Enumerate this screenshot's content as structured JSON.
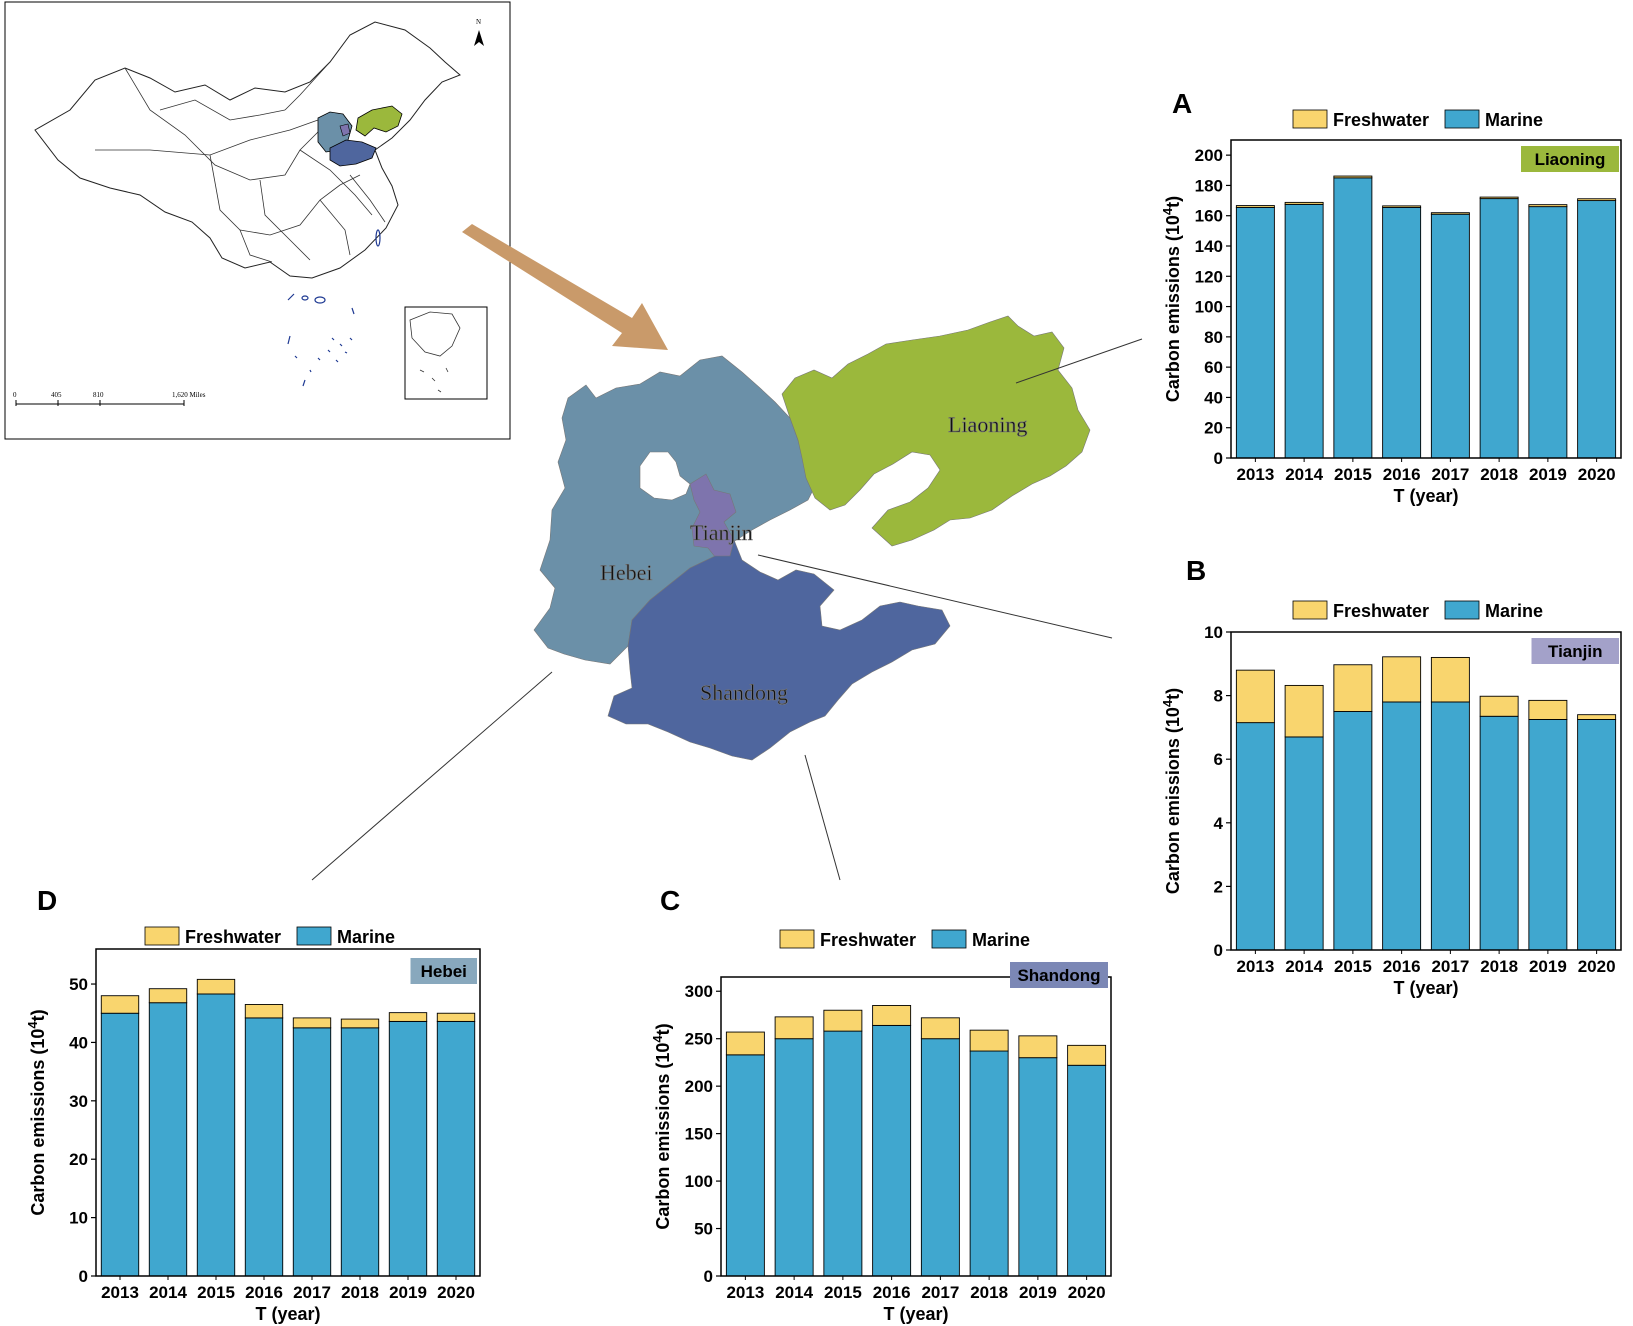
{
  "colors": {
    "freshwater": "#f9d56e",
    "marine": "#40a7cf",
    "liaoning": "#9bb83c",
    "hebei": "#6b90a8",
    "tianjin": "#7e74ad",
    "shandong": "#4f669e",
    "arrow": "#c99a6a"
  },
  "overview_map": {
    "north_label": "N",
    "scale_labels": [
      "0",
      "405",
      "810",
      "1,620 Miles"
    ]
  },
  "region_map": {
    "labels": {
      "liaoning": "Liaoning",
      "tianjin": "Tianjin",
      "hebei": "Hebei",
      "shandong": "Shandong"
    }
  },
  "chart_data": [
    {
      "panel": "A",
      "type": "bar",
      "stacked": true,
      "region": "Liaoning",
      "region_color": "#9bb83c",
      "legend": [
        "Freshwater",
        "Marine"
      ],
      "categories": [
        "2013",
        "2014",
        "2015",
        "2016",
        "2017",
        "2018",
        "2019",
        "2020"
      ],
      "series": [
        {
          "name": "Marine",
          "values": [
            165.5,
            167.5,
            185,
            165.5,
            161,
            171.3,
            166,
            170
          ]
        },
        {
          "name": "Freshwater",
          "values": [
            1.2,
            1.3,
            1.2,
            1.0,
            1.0,
            1.0,
            1.3,
            1.2
          ]
        }
      ],
      "xlabel": "T (year)",
      "ylabel_prefix": "Carbon emissions (10",
      "ylabel_sup": "4",
      "ylabel_suffix": "t)",
      "ylim": [
        0,
        210
      ],
      "yticks": [
        0,
        20,
        40,
        60,
        80,
        100,
        120,
        140,
        160,
        180,
        200
      ]
    },
    {
      "panel": "B",
      "type": "bar",
      "stacked": true,
      "region": "Tianjin",
      "region_color": "#a3a1c9",
      "legend": [
        "Freshwater",
        "Marine"
      ],
      "categories": [
        "2013",
        "2014",
        "2015",
        "2016",
        "2017",
        "2018",
        "2019",
        "2020"
      ],
      "series": [
        {
          "name": "Marine",
          "values": [
            7.15,
            6.7,
            7.5,
            7.8,
            7.8,
            7.35,
            7.25,
            7.25
          ]
        },
        {
          "name": "Freshwater",
          "values": [
            1.65,
            1.62,
            1.47,
            1.42,
            1.4,
            0.63,
            0.6,
            0.15
          ]
        }
      ],
      "xlabel": "T (year)",
      "ylabel_prefix": "Carbon emissions (10",
      "ylabel_sup": "4",
      "ylabel_suffix": "t)",
      "ylim": [
        0,
        10
      ],
      "yticks": [
        0,
        2,
        4,
        6,
        8,
        10
      ]
    },
    {
      "panel": "C",
      "type": "bar",
      "stacked": true,
      "region": "Shandong",
      "region_color": "#7b87b5",
      "legend": [
        "Freshwater",
        "Marine"
      ],
      "categories": [
        "2013",
        "2014",
        "2015",
        "2016",
        "2017",
        "2018",
        "2019",
        "2020"
      ],
      "series": [
        {
          "name": "Marine",
          "values": [
            233,
            250,
            258,
            264,
            250,
            237,
            230,
            222
          ]
        },
        {
          "name": "Freshwater",
          "values": [
            24,
            23,
            22,
            21,
            22,
            22,
            23,
            21
          ]
        }
      ],
      "xlabel": "T (year)",
      "ylabel_prefix": "Carbon emissions (10",
      "ylabel_sup": "4",
      "ylabel_suffix": "t)",
      "ylim": [
        0,
        315
      ],
      "yticks": [
        0,
        50,
        100,
        150,
        200,
        250,
        300
      ]
    },
    {
      "panel": "D",
      "type": "bar",
      "stacked": true,
      "region": "Hebei",
      "region_color": "#88a8bd",
      "legend": [
        "Freshwater",
        "Marine"
      ],
      "categories": [
        "2013",
        "2014",
        "2015",
        "2016",
        "2017",
        "2018",
        "2019",
        "2020"
      ],
      "series": [
        {
          "name": "Marine",
          "values": [
            45,
            46.8,
            48.3,
            44.2,
            42.5,
            42.5,
            43.6,
            43.6
          ]
        },
        {
          "name": "Freshwater",
          "values": [
            3.0,
            2.4,
            2.5,
            2.3,
            1.7,
            1.5,
            1.5,
            1.4
          ]
        }
      ],
      "xlabel": "T (year)",
      "ylabel_prefix": "Carbon emissions (10",
      "ylabel_sup": "4",
      "ylabel_suffix": "t)",
      "ylim": [
        0,
        56
      ],
      "yticks": [
        0,
        10,
        20,
        30,
        40,
        50
      ]
    }
  ]
}
